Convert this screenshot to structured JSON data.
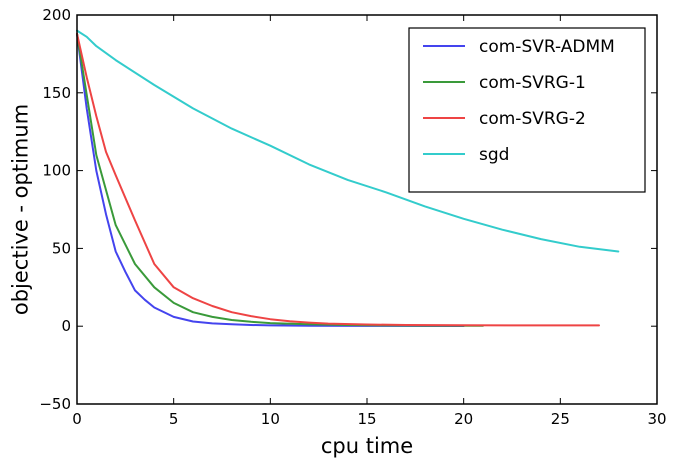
{
  "chart_data": {
    "type": "line",
    "title": "",
    "xlabel": "cpu time",
    "ylabel": "objective - optimum",
    "xlim": [
      0,
      30
    ],
    "ylim": [
      -50,
      200
    ],
    "x_ticks": [
      0,
      5,
      10,
      15,
      20,
      25,
      30
    ],
    "y_ticks": [
      -50,
      0,
      50,
      100,
      150,
      200
    ],
    "x_tick_labels": [
      "0",
      "5",
      "10",
      "15",
      "20",
      "25",
      "30"
    ],
    "y_tick_labels": [
      "−50",
      "0",
      "50",
      "100",
      "150",
      "200"
    ],
    "grid": false,
    "legend_position": "top-right",
    "series": [
      {
        "name": "com-SVR-ADMM",
        "color": "#4444ee",
        "x": [
          0,
          0.5,
          1,
          1.5,
          2,
          2.5,
          3,
          3.5,
          4,
          5,
          6,
          7,
          8,
          9,
          10,
          12,
          15,
          20
        ],
        "y": [
          188,
          140,
          100,
          72,
          48,
          35,
          23,
          17,
          12,
          6,
          3,
          1.8,
          1.2,
          0.8,
          0.5,
          0.3,
          0.2,
          0.1
        ]
      },
      {
        "name": "com-SVRG-1",
        "color": "#3a9a3a",
        "x": [
          0,
          1,
          2,
          3,
          4,
          5,
          6,
          7,
          8,
          9,
          10,
          12,
          14,
          16,
          18,
          21
        ],
        "y": [
          188,
          110,
          65,
          40,
          25,
          15,
          9,
          6,
          4,
          2.8,
          2,
          1.2,
          0.8,
          0.5,
          0.4,
          0.3
        ]
      },
      {
        "name": "com-SVRG-2",
        "color": "#ee4444",
        "x": [
          0,
          0.5,
          1,
          1.5,
          2,
          3,
          4,
          5,
          6,
          7,
          8,
          9,
          10,
          11,
          12,
          13,
          15,
          17,
          20,
          23,
          27
        ],
        "y": [
          188,
          160,
          135,
          112,
          97,
          68,
          40,
          25,
          18,
          13,
          9,
          6.5,
          4.5,
          3.2,
          2.3,
          1.7,
          1.1,
          0.8,
          0.6,
          0.5,
          0.5
        ]
      },
      {
        "name": "sgd",
        "color": "#33cccc",
        "x": [
          0,
          0.5,
          1,
          2,
          4,
          6,
          8,
          10,
          12,
          14,
          16,
          18,
          20,
          22,
          24,
          26,
          28
        ],
        "y": [
          190,
          186,
          180,
          171,
          155,
          140,
          127,
          116,
          104,
          94,
          86,
          77,
          69,
          62,
          56,
          51,
          48
        ]
      }
    ]
  }
}
